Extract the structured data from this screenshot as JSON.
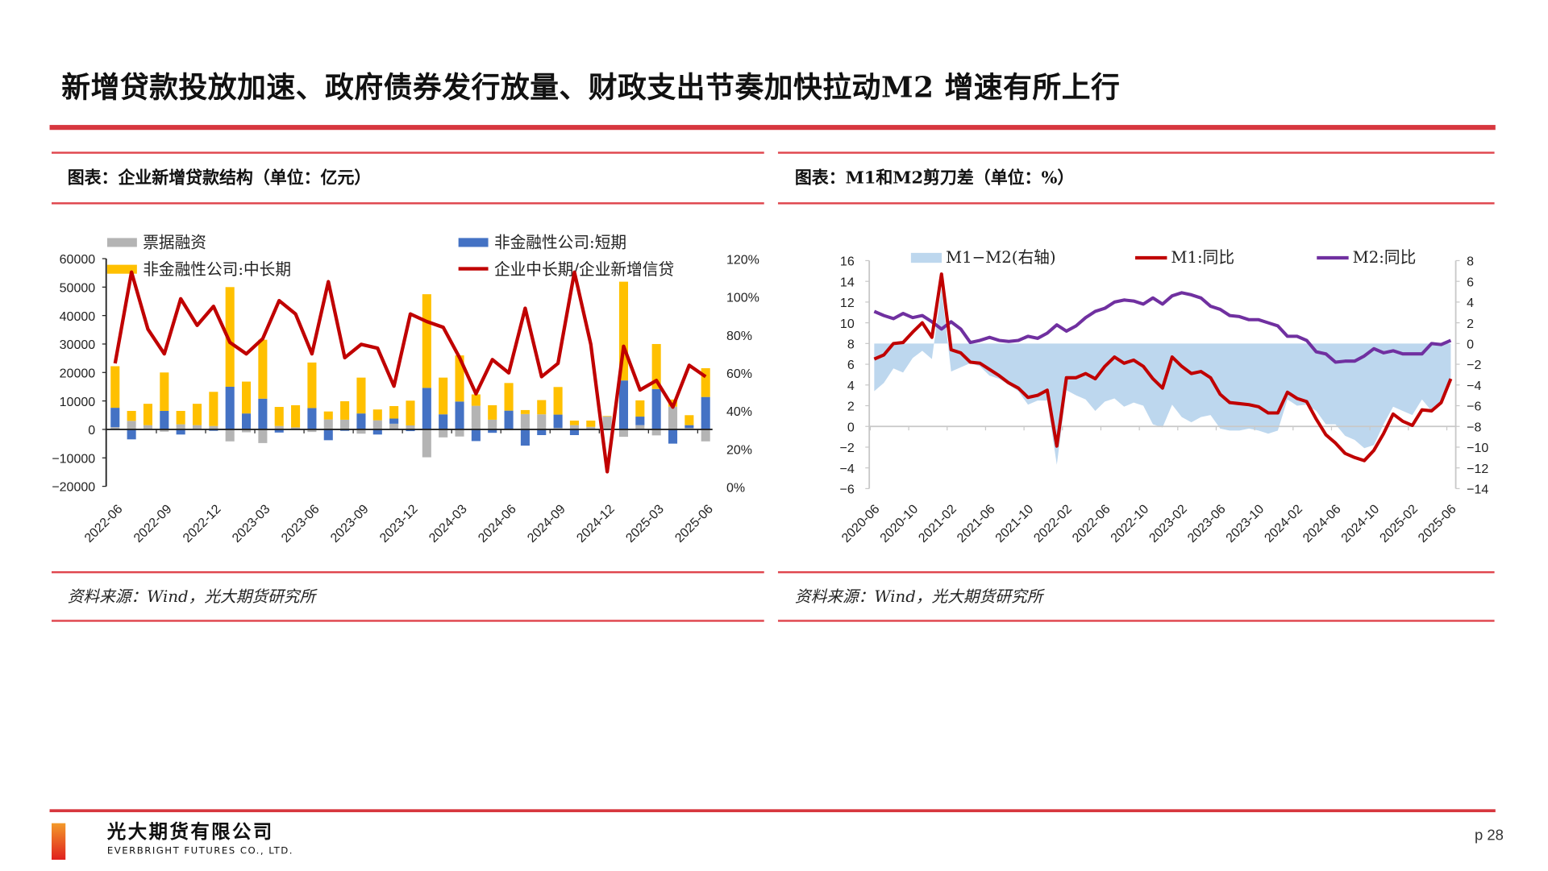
{
  "header": {
    "title": "新增贷款投放加速、政府债券发行放量、财政支出节奏加快拉动M2 增速有所上行"
  },
  "colors": {
    "accent_red": "#d7373f",
    "bill": "#b4b4b4",
    "short": "#4472c4",
    "midlong": "#ffc000",
    "ratio_line": "#c00000",
    "m1": "#c00000",
    "m2": "#7030a0",
    "m1_m2_area": "#bdd7ee"
  },
  "left_panel": {
    "title": "图表：企业新增贷款结构（单位：亿元）",
    "source": "资料来源：Wind，光大期货研究所"
  },
  "right_panel": {
    "title": "图表：M1和M2剪刀差（单位：%）",
    "source": "资料来源：Wind，光大期货研究所"
  },
  "footer": {
    "company_cn": "光大期货有限公司",
    "company_en": "EVERBRIGHT FUTURES CO., LTD.",
    "page": "p 28"
  },
  "chart_data": [
    {
      "type": "bar",
      "stacked": true,
      "categories": [
        "2022-06",
        "2022-07",
        "2022-08",
        "2022-09",
        "2022-10",
        "2022-11",
        "2022-12",
        "2023-01",
        "2023-02",
        "2023-03",
        "2023-04",
        "2023-05",
        "2023-06",
        "2023-07",
        "2023-08",
        "2023-09",
        "2023-10",
        "2023-11",
        "2023-12",
        "2024-01",
        "2024-02",
        "2024-03",
        "2024-04",
        "2024-05",
        "2024-06",
        "2024-07",
        "2024-08",
        "2024-09",
        "2024-10",
        "2024-11",
        "2024-12",
        "2025-01",
        "2025-02",
        "2025-03",
        "2025-04",
        "2025-05",
        "2025-06"
      ],
      "x_tick_labels": [
        "2022-06",
        "2022-09",
        "2022-12",
        "2023-03",
        "2023-06",
        "2023-09",
        "2023-12",
        "2024-03",
        "2024-06",
        "2024-09",
        "2024-12",
        "2025-03",
        "2025-06"
      ],
      "series": [
        {
          "name": "票据融资",
          "type": "bar",
          "axis": "left",
          "values": [
            800,
            3000,
            1500,
            -800,
            1800,
            1500,
            1200,
            -4200,
            -1000,
            -4800,
            1200,
            700,
            -900,
            3500,
            3400,
            -1500,
            3200,
            2000,
            1400,
            -9800,
            -2800,
            -2500,
            8300,
            3400,
            -300,
            5400,
            5300,
            500,
            1500,
            900,
            4500,
            -2600,
            1500,
            -2100,
            8000,
            500,
            -4200
          ]
        },
        {
          "name": "非金融性公司:短期",
          "type": "bar",
          "axis": "left",
          "values": [
            6800,
            -3500,
            0,
            6500,
            -1800,
            0,
            -500,
            15000,
            5600,
            10800,
            -1100,
            0,
            7500,
            -3800,
            -500,
            5600,
            -1800,
            1800,
            -600,
            14600,
            5300,
            9800,
            -4100,
            -1200,
            6600,
            -5700,
            -2000,
            4700,
            -2000,
            0,
            0,
            17200,
            3000,
            14200,
            -5000,
            1000,
            11400
          ]
        },
        {
          "name": "非金融性公司:中长期",
          "type": "bar",
          "axis": "left",
          "values": [
            14600,
            3500,
            7500,
            13500,
            4700,
            7500,
            12000,
            35000,
            11200,
            20700,
            6700,
            7800,
            16000,
            2800,
            6500,
            12600,
            3800,
            4400,
            8700,
            32900,
            12900,
            16200,
            4000,
            5100,
            9700,
            1400,
            5000,
            9700,
            1600,
            2200,
            200,
            34700,
            5700,
            15800,
            2500,
            3500,
            10100
          ]
        },
        {
          "name": "企业中长期/企业新增信贷",
          "type": "line",
          "axis": "right",
          "unit": "%",
          "values": [
            65,
            113,
            83,
            70,
            99,
            85,
            95,
            76,
            70,
            78,
            98,
            91,
            70,
            108,
            68,
            75,
            73,
            53,
            91,
            87,
            84,
            68,
            49,
            67,
            60,
            94,
            58,
            65,
            113,
            75,
            8,
            74,
            51,
            56,
            42,
            64,
            58
          ]
        }
      ],
      "ylim": [
        -20000,
        60000
      ],
      "y_ticks": [
        "60000",
        "50000",
        "40000",
        "30000",
        "20000",
        "10000",
        "0",
        "−10000",
        "−20000"
      ],
      "y2lim": [
        0,
        120
      ],
      "y2_ticks": [
        "120%",
        "100%",
        "80%",
        "60%",
        "40%",
        "20%",
        "0%"
      ],
      "legend": "top",
      "grid": false
    },
    {
      "type": "line",
      "categories_range": [
        "2020-06",
        "2025-06"
      ],
      "x_tick_labels": [
        "2020-06",
        "2020-10",
        "2021-02",
        "2021-06",
        "2021-10",
        "2022-02",
        "2022-06",
        "2022-10",
        "2023-02",
        "2023-06",
        "2023-10",
        "2024-02",
        "2024-06",
        "2024-10",
        "2025-02",
        "2025-06"
      ],
      "series": [
        {
          "name": "M1:同比",
          "type": "line",
          "axis": "left",
          "values": [
            6.5,
            6.9,
            8.0,
            8.1,
            9.1,
            10.0,
            8.6,
            14.7,
            7.4,
            7.1,
            6.2,
            6.1,
            5.5,
            4.9,
            4.2,
            3.7,
            2.8,
            3.0,
            3.5,
            -1.9,
            4.7,
            4.7,
            5.1,
            4.6,
            5.8,
            6.7,
            6.1,
            6.4,
            5.8,
            4.6,
            3.7,
            6.7,
            5.8,
            5.1,
            5.3,
            4.7,
            3.1,
            2.3,
            2.2,
            2.1,
            1.9,
            1.3,
            1.3,
            3.3,
            2.7,
            2.4,
            0.7,
            -0.8,
            -1.6,
            -2.6,
            -3.0,
            -3.3,
            -2.3,
            -0.7,
            1.2,
            0.5,
            0.1,
            1.6,
            1.5,
            2.3,
            4.6
          ]
        },
        {
          "name": "M2:同比",
          "type": "line",
          "axis": "left",
          "values": [
            11.1,
            10.7,
            10.4,
            10.9,
            10.5,
            10.7,
            10.1,
            9.4,
            10.1,
            9.4,
            8.1,
            8.3,
            8.6,
            8.3,
            8.2,
            8.3,
            8.7,
            8.5,
            9.0,
            9.8,
            9.2,
            9.7,
            10.5,
            11.1,
            11.4,
            12.0,
            12.2,
            12.1,
            11.8,
            12.4,
            11.8,
            12.6,
            12.9,
            12.7,
            12.4,
            11.6,
            11.3,
            10.7,
            10.6,
            10.3,
            10.3,
            10.0,
            9.7,
            8.7,
            8.7,
            8.3,
            7.2,
            7.0,
            6.2,
            6.3,
            6.3,
            6.8,
            7.5,
            7.1,
            7.3,
            7.0,
            7.0,
            7.0,
            8.0,
            7.9,
            8.3
          ]
        },
        {
          "name": "M1−M2(右轴)",
          "type": "area",
          "axis": "right",
          "derived_from": "M1:同比 minus M2:同比"
        }
      ],
      "ylim": [
        -6,
        16
      ],
      "y_ticks": [
        "16",
        "14",
        "12",
        "10",
        "8",
        "6",
        "4",
        "2",
        "0",
        "−2",
        "−4",
        "−6"
      ],
      "y2lim": [
        -14,
        8
      ],
      "y2_ticks": [
        "8",
        "6",
        "4",
        "2",
        "0",
        "−2",
        "−4",
        "−6",
        "−8",
        "−10",
        "−12",
        "−14"
      ],
      "legend": "top",
      "grid": false
    }
  ]
}
